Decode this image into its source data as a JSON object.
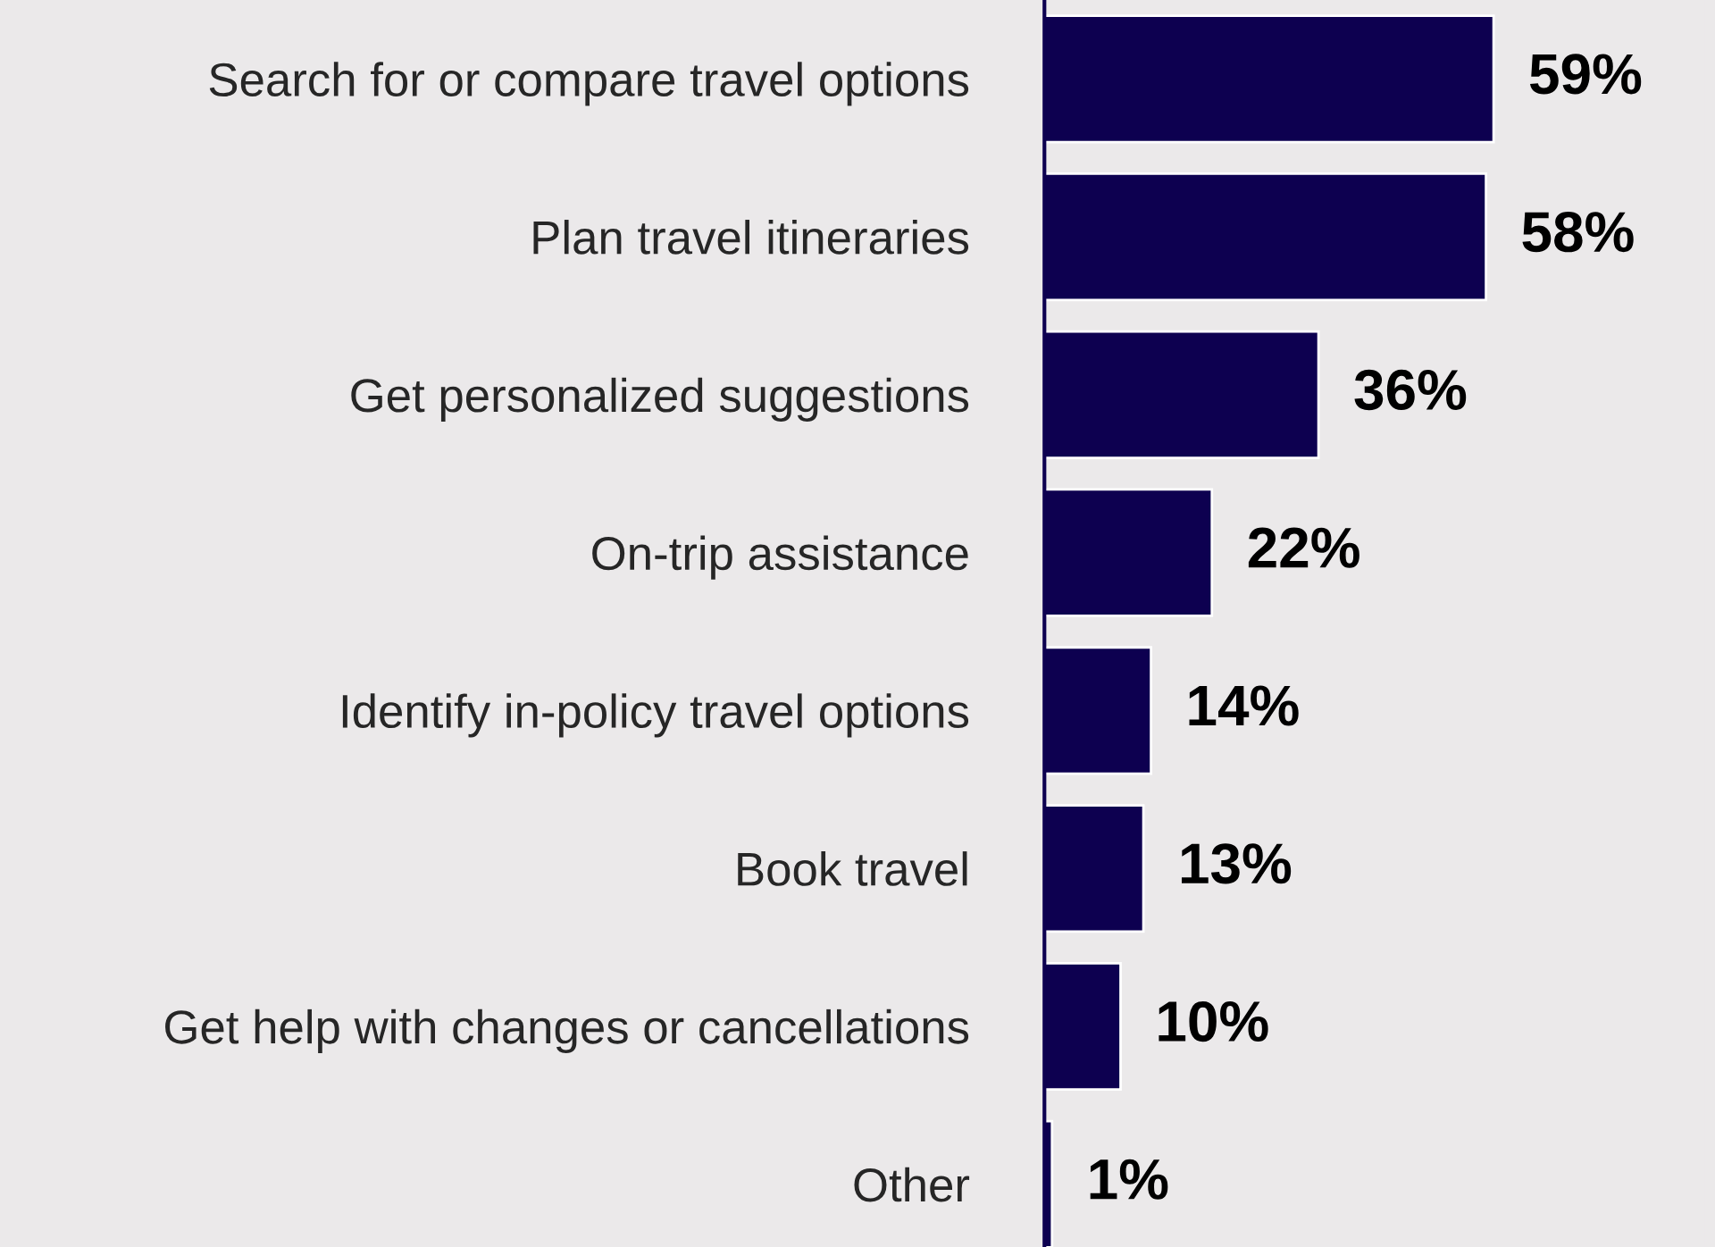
{
  "chart_data": {
    "type": "bar",
    "orientation": "horizontal",
    "categories": [
      "Search for or compare travel options",
      "Plan travel itineraries",
      "Get personalized suggestions",
      "On-trip assistance",
      "Identify in-policy travel options",
      "Book travel",
      "Get help with changes or cancellations",
      "Other"
    ],
    "values": [
      59,
      58,
      36,
      22,
      14,
      13,
      10,
      1
    ],
    "value_labels": [
      "59%",
      "58%",
      "36%",
      "22%",
      "14%",
      "13%",
      "10%",
      "1%"
    ],
    "color": "#0d0050",
    "grid": false,
    "legend": false
  }
}
